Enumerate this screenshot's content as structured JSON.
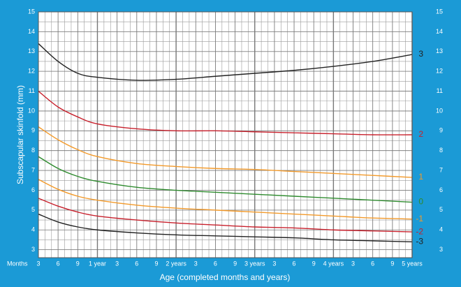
{
  "chart_data": {
    "type": "line",
    "y_label": "Subscapular skinfold (mm)",
    "x_label": "Age (completed months and years)",
    "x_unit_label": "Months",
    "x": [
      3,
      6,
      9,
      12,
      18,
      24,
      30,
      36,
      42,
      48,
      54,
      60
    ],
    "xlim": [
      3,
      60
    ],
    "xticks": [
      3,
      6,
      9,
      {
        "value": 12,
        "label": "1 year"
      },
      {
        "value": 15,
        "label": "3"
      },
      {
        "value": 18,
        "label": "6"
      },
      {
        "value": 21,
        "label": "9"
      },
      {
        "value": 24,
        "label": "2 years"
      },
      {
        "value": 27,
        "label": "3"
      },
      {
        "value": 30,
        "label": "6"
      },
      {
        "value": 33,
        "label": "9"
      },
      {
        "value": 36,
        "label": "3 years"
      },
      {
        "value": 39,
        "label": "3"
      },
      {
        "value": 42,
        "label": "6"
      },
      {
        "value": 45,
        "label": "9"
      },
      {
        "value": 48,
        "label": "4 years"
      },
      {
        "value": 51,
        "label": "3"
      },
      {
        "value": 54,
        "label": "6"
      },
      {
        "value": 57,
        "label": "9"
      },
      {
        "value": 60,
        "label": "5 years"
      }
    ],
    "ylim": [
      2.6,
      15
    ],
    "yticks": [
      3,
      4,
      5,
      6,
      7,
      8,
      9,
      10,
      11,
      12,
      13,
      14,
      15
    ],
    "grid": true,
    "series": [
      {
        "name": "3",
        "color": "#222222",
        "values": [
          13.4,
          12.5,
          11.9,
          11.7,
          11.55,
          11.6,
          11.75,
          11.9,
          12.05,
          12.25,
          12.5,
          12.85
        ]
      },
      {
        "name": "2",
        "color": "#c8202c",
        "values": [
          11.0,
          10.2,
          9.7,
          9.35,
          9.1,
          9.0,
          9.0,
          8.95,
          8.9,
          8.85,
          8.8,
          8.8
        ]
      },
      {
        "name": "1",
        "color": "#f39a2a",
        "values": [
          9.2,
          8.55,
          8.05,
          7.7,
          7.35,
          7.2,
          7.1,
          7.05,
          6.95,
          6.85,
          6.75,
          6.65
        ]
      },
      {
        "name": "0",
        "color": "#2e8b2e",
        "values": [
          7.7,
          7.1,
          6.7,
          6.45,
          6.15,
          6.0,
          5.9,
          5.8,
          5.7,
          5.6,
          5.5,
          5.4
        ]
      },
      {
        "name": "-1",
        "color": "#f39a2a",
        "values": [
          6.55,
          6.05,
          5.7,
          5.5,
          5.25,
          5.1,
          5.0,
          4.9,
          4.8,
          4.7,
          4.6,
          4.55
        ]
      },
      {
        "name": "-2",
        "color": "#c8202c",
        "values": [
          5.6,
          5.2,
          4.9,
          4.7,
          4.5,
          4.35,
          4.25,
          4.15,
          4.1,
          4.0,
          3.95,
          3.9
        ]
      },
      {
        "name": "-3",
        "color": "#222222",
        "values": [
          4.8,
          4.4,
          4.15,
          4.0,
          3.85,
          3.75,
          3.7,
          3.65,
          3.6,
          3.5,
          3.45,
          3.4
        ]
      }
    ]
  }
}
